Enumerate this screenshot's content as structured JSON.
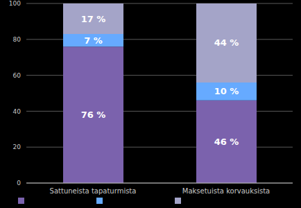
{
  "chart_data": {
    "type": "bar",
    "stacked": true,
    "categories": [
      "Sattuneista tapaturmista",
      "Maksetuista korvauksista"
    ],
    "series": [
      {
        "color": "#7b62ad",
        "values": [
          76,
          46
        ],
        "value_labels": [
          "76 %",
          "46 %"
        ]
      },
      {
        "color": "#66aaff",
        "values": [
          7,
          10
        ],
        "value_labels": [
          "7 %",
          "10 %"
        ]
      },
      {
        "color": "#a4a4c8",
        "values": [
          17,
          44
        ],
        "value_labels": [
          "17 %",
          "44 %"
        ]
      }
    ],
    "ylim": [
      0,
      100
    ],
    "yticks": [
      0,
      20,
      40,
      60,
      80,
      100
    ],
    "grid": true,
    "data_labels": true,
    "legend": "bottom"
  }
}
